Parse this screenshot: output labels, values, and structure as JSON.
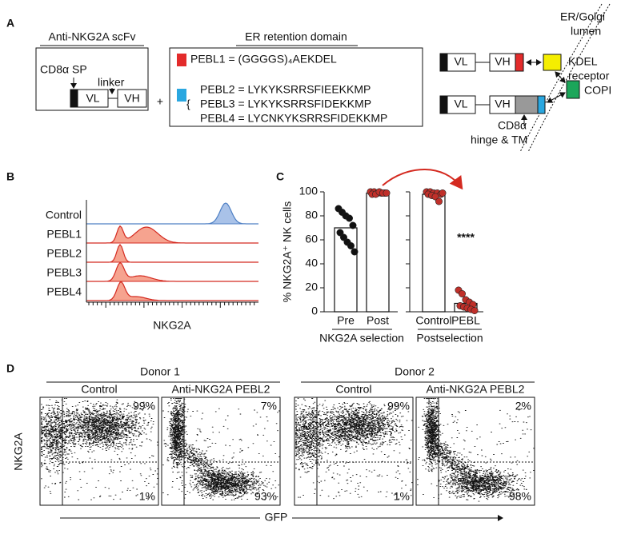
{
  "panel_labels": [
    "A",
    "B",
    "C",
    "D"
  ],
  "panel_a": {
    "scfv_title": "Anti-NKG2A scFv",
    "sp_label": "CD8α SP",
    "linker_label": "linker",
    "vl": "VL",
    "vh": "VH",
    "plus": "+",
    "er_title": "ER retention domain",
    "pebl_sequences": [
      "PEBL1 = (GGGGS)₄AEKDEL",
      "PEBL2 = LYKYKSRRSFIEEKKMP",
      "PEBL3 = LYKYKSRRSFIDEKKMP",
      "PEBL4 = LYCNKYKSRRSFIDEKKMP"
    ],
    "lumen_label": [
      "ER/Golgi",
      "lumen"
    ],
    "receptor_label": [
      "KDEL",
      "receptor"
    ],
    "copi_label": "COPI",
    "hinge_label": [
      "CD8α",
      "hinge & TM"
    ]
  },
  "panel_b": {
    "rows": [
      "Control",
      "PEBL1",
      "PEBL2",
      "PEBL3",
      "PEBL4"
    ],
    "x_label": "NKG2A"
  },
  "chart_data": {
    "type": "bar",
    "y_label": "% NKG2A⁺ NK cells",
    "categories": [
      "Pre",
      "Post",
      "Control",
      "PEBL"
    ],
    "groups": [
      "NKG2A selection",
      "Postselection"
    ],
    "values": [
      70,
      99,
      98,
      7
    ],
    "points": [
      [
        86,
        83,
        80,
        78,
        72,
        66,
        62,
        58,
        55,
        50
      ],
      [
        100,
        100,
        99,
        99,
        99,
        98,
        98,
        100,
        99,
        99
      ],
      [
        100,
        100,
        99,
        99,
        98,
        98,
        97,
        96,
        92,
        99
      ],
      [
        18,
        15,
        10,
        8,
        6,
        5,
        4,
        3,
        2,
        1
      ]
    ],
    "point_colors": [
      "#111111",
      "#c0302a",
      "#c0302a",
      "#c0302a"
    ],
    "ylim": [
      0,
      100
    ],
    "yticks": [
      0,
      20,
      40,
      60,
      80,
      100
    ],
    "annotation": "****"
  },
  "panel_d": {
    "y_label": "NKG2A",
    "x_label": "GFP",
    "donors": [
      {
        "name": "Donor 1",
        "plots": [
          {
            "title": "Control",
            "upper": "99%",
            "lower": "1%"
          },
          {
            "title": "Anti-NKG2A PEBL2",
            "upper": "7%",
            "lower": "93%"
          }
        ]
      },
      {
        "name": "Donor 2",
        "plots": [
          {
            "title": "Control",
            "upper": "99%",
            "lower": "1%"
          },
          {
            "title": "Anti-NKG2A PEBL2",
            "upper": "2%",
            "lower": "98%"
          }
        ]
      }
    ]
  }
}
